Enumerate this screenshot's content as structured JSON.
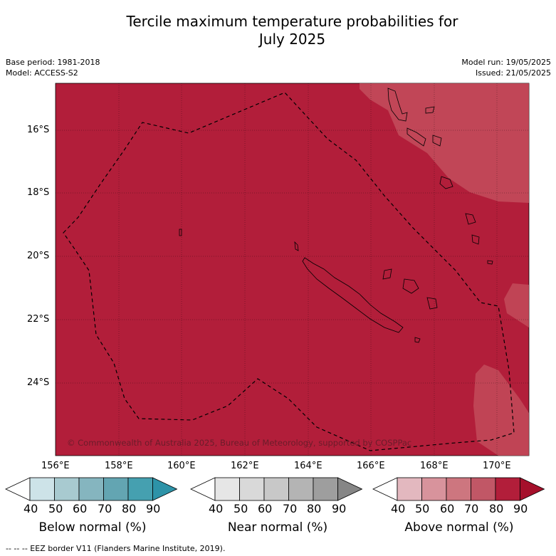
{
  "title_line1": "Tercile maximum temperature probabilities for",
  "title_line2": "July 2025",
  "meta_left": {
    "base_period": "Base period: 1981-2018",
    "model": "Model: ACCESS-S2"
  },
  "meta_right": {
    "model_run": "Model run: 19/05/2025",
    "issued": "Issued: 21/05/2025"
  },
  "latitude_labels": [
    "16°S",
    "18°S",
    "20°S",
    "22°S",
    "24°S"
  ],
  "longitude_labels": [
    "156°E",
    "158°E",
    "160°E",
    "162°E",
    "164°E",
    "166°E",
    "168°E",
    "170°E"
  ],
  "copyright": "© Commonwealth of Australia 2025, Bureau of Meteorology, supported by COSPPac",
  "colorbars": [
    {
      "label": "Below normal (%)",
      "ticks": [
        "40",
        "50",
        "60",
        "70",
        "80",
        "90"
      ],
      "colors": [
        "#ffffff",
        "#cde3e8",
        "#a8cad0",
        "#85b5bf",
        "#63a5b2",
        "#45a0b0",
        "#2d93a8"
      ]
    },
    {
      "label": "Near normal (%)",
      "ticks": [
        "40",
        "50",
        "60",
        "70",
        "80",
        "90"
      ],
      "colors": [
        "#ffffff",
        "#e6e6e6",
        "#d9d9d9",
        "#c8c8c8",
        "#b4b4b4",
        "#9e9e9e",
        "#868686"
      ]
    },
    {
      "label": "Above normal (%)",
      "ticks": [
        "40",
        "50",
        "60",
        "70",
        "80",
        "90"
      ],
      "colors": [
        "#ffffff",
        "#e3b8bf",
        "#d8939c",
        "#cd767f",
        "#c15766",
        "#b21e3a",
        "#a5102b"
      ]
    }
  ],
  "footnote": "--  --  -- EEZ border V11 (Flanders Marine Institute, 2019).",
  "map_colors": {
    "dominant": "#b21e3a",
    "lighter": "#c13b4e",
    "lightest": "#c65461"
  }
}
